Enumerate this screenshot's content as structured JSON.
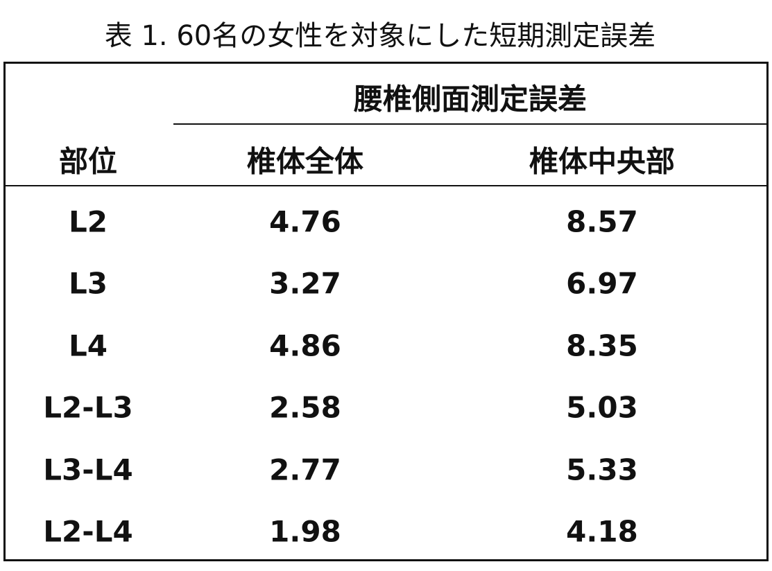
{
  "title": "表 1. 60名の女性を対象にした短期測定誤差",
  "table": {
    "group_header": "腰椎側面測定誤差",
    "columns": [
      "部位",
      "椎体全体",
      "椎体中央部"
    ],
    "rows": [
      [
        "L2",
        4.76,
        8.57
      ],
      [
        "L3",
        3.27,
        6.97
      ],
      [
        "L4",
        4.86,
        8.35
      ],
      [
        "L2-L3",
        2.58,
        5.03
      ],
      [
        "L3-L4",
        2.77,
        5.33
      ],
      [
        "L2-L4",
        1.98,
        4.18
      ]
    ]
  }
}
